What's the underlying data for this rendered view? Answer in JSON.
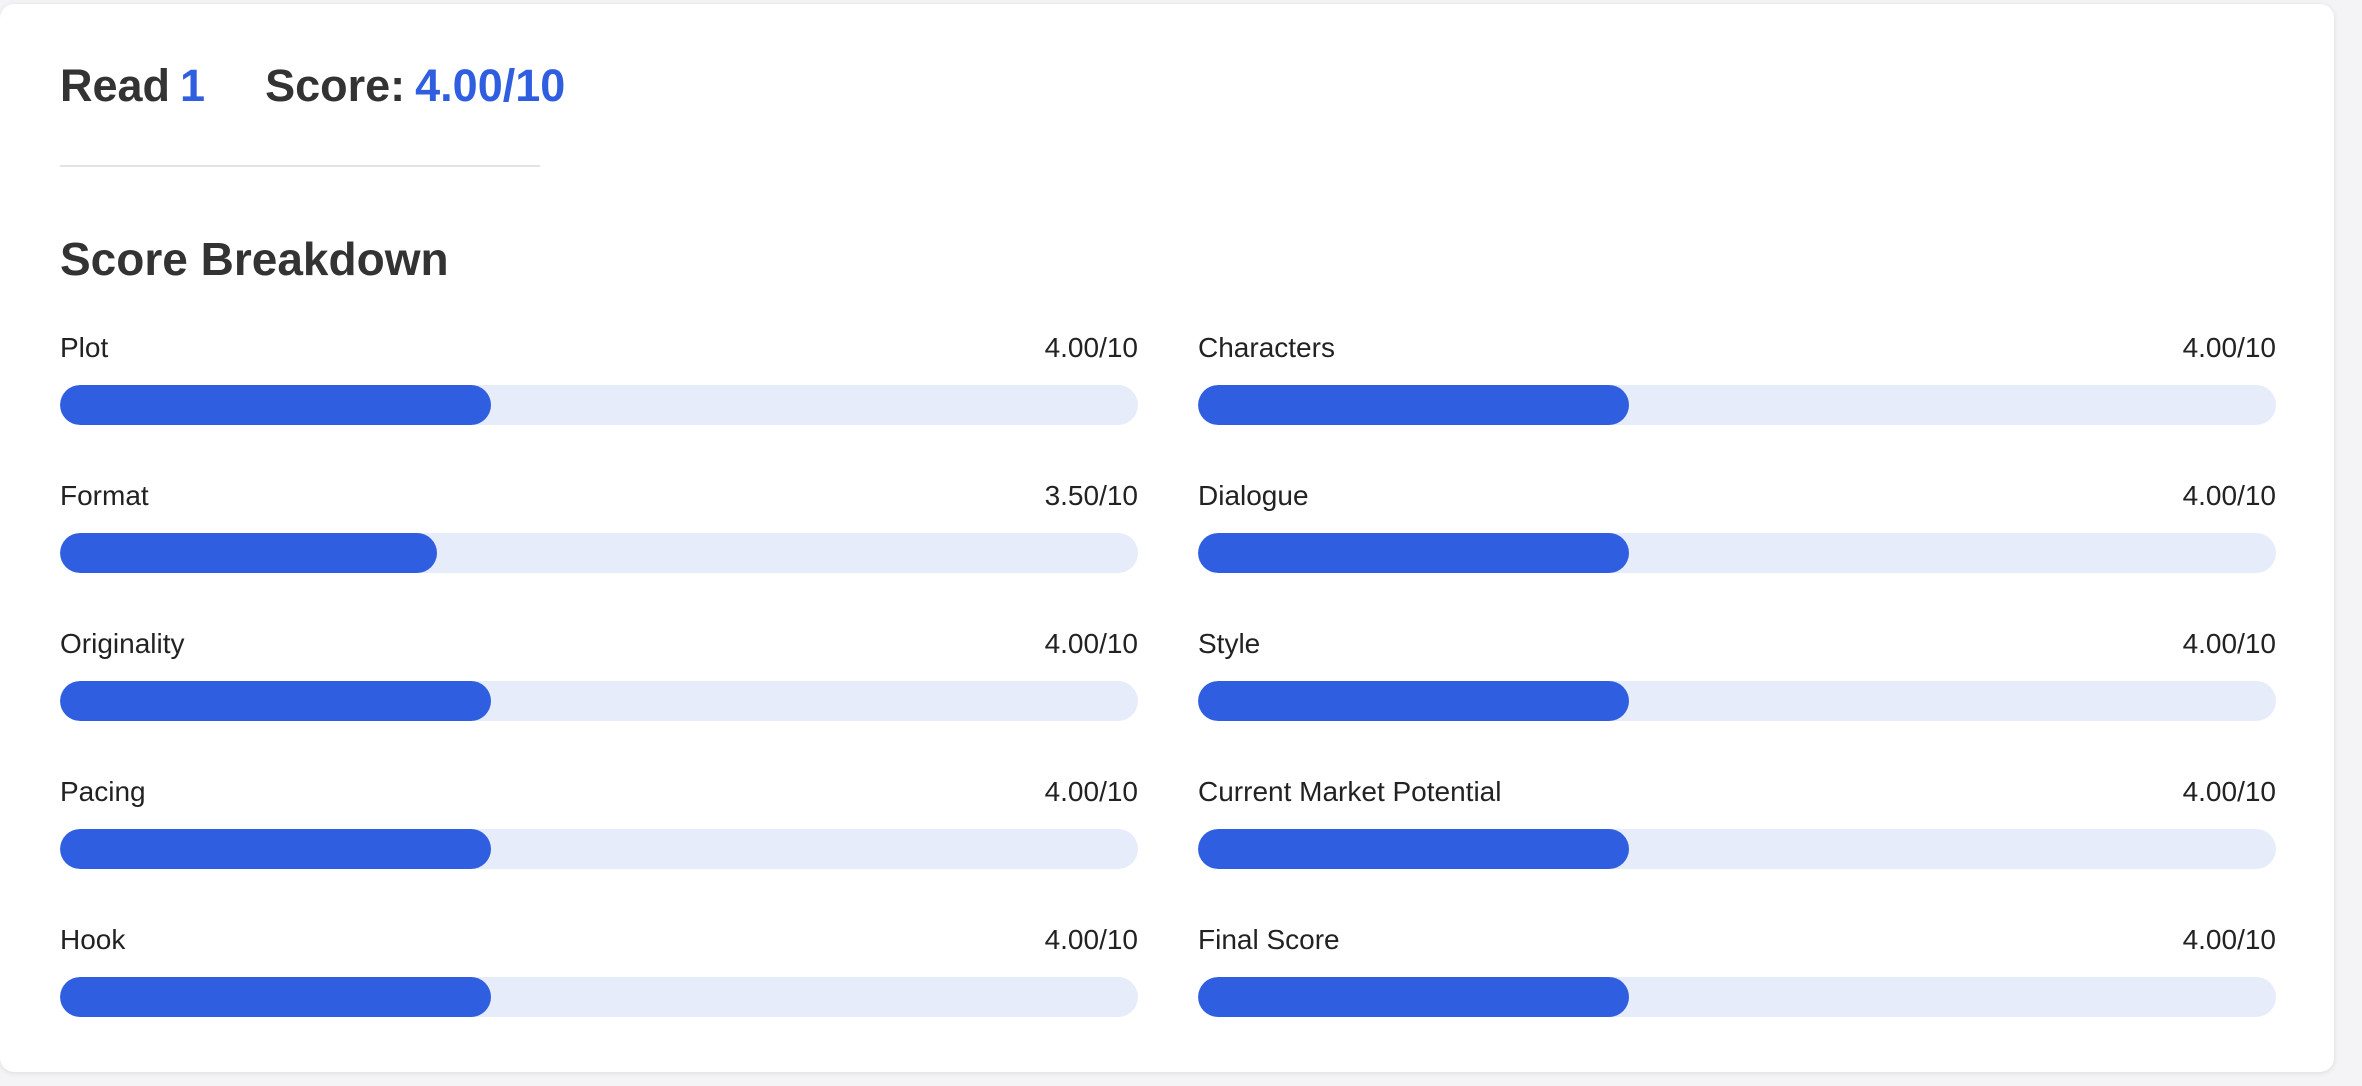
{
  "header": {
    "read_label": "Read",
    "read_number": "1",
    "score_label": "Score:",
    "score_value": "4.00/10"
  },
  "section_title": "Score Breakdown",
  "colors": {
    "accent": "#2f5fe0",
    "track": "#e7ecfb",
    "text": "#333333"
  },
  "metrics": [
    {
      "label": "Plot",
      "value": "4.00/10",
      "score": 4.0
    },
    {
      "label": "Characters",
      "value": "4.00/10",
      "score": 4.0
    },
    {
      "label": "Format",
      "value": "3.50/10",
      "score": 3.5
    },
    {
      "label": "Dialogue",
      "value": "4.00/10",
      "score": 4.0
    },
    {
      "label": "Originality",
      "value": "4.00/10",
      "score": 4.0
    },
    {
      "label": "Style",
      "value": "4.00/10",
      "score": 4.0
    },
    {
      "label": "Pacing",
      "value": "4.00/10",
      "score": 4.0
    },
    {
      "label": "Current Market Potential",
      "value": "4.00/10",
      "score": 4.0
    },
    {
      "label": "Hook",
      "value": "4.00/10",
      "score": 4.0
    },
    {
      "label": "Final Score",
      "value": "4.00/10",
      "score": 4.0
    }
  ],
  "max_score": 10
}
